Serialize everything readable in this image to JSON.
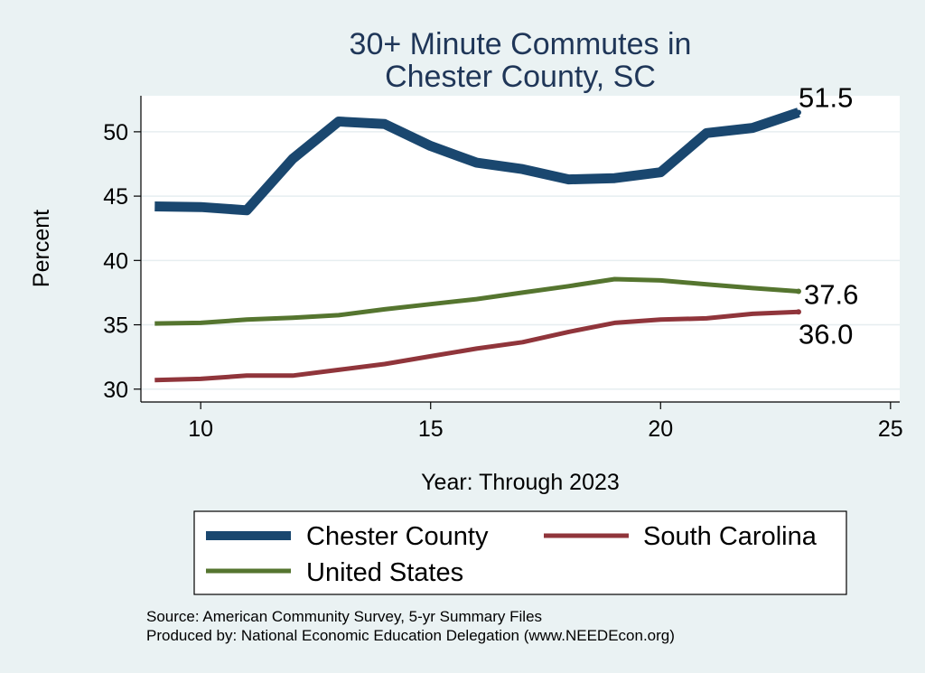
{
  "chart_data": {
    "type": "line",
    "title": [
      "30+ Minute Commutes in",
      "Chester County, SC"
    ],
    "xlabel": "Year: Through 2023",
    "ylabel": "Percent",
    "xlim": [
      8.7,
      25.2
    ],
    "ylim": [
      29.0,
      52.8
    ],
    "xticks": [
      10,
      15,
      20,
      25
    ],
    "yticks": [
      30,
      35,
      40,
      45,
      50
    ],
    "grid": true,
    "x": [
      9,
      10,
      11,
      12,
      13,
      14,
      15,
      16,
      17,
      18,
      19,
      20,
      21,
      22,
      23
    ],
    "series": [
      {
        "name": "Chester County",
        "color": "#1a476f",
        "values": [
          44.2,
          44.15,
          43.9,
          47.9,
          50.8,
          50.6,
          48.9,
          47.6,
          47.1,
          46.3,
          46.4,
          46.85,
          49.9,
          50.3,
          51.5
        ],
        "end_label": "51.5"
      },
      {
        "name": "South Carolina",
        "color": "#90353b",
        "values": [
          30.7,
          30.8,
          31.05,
          31.05,
          31.5,
          31.95,
          32.55,
          33.15,
          33.65,
          34.45,
          35.15,
          35.4,
          35.5,
          35.85,
          36.0
        ],
        "end_label": "36.0"
      },
      {
        "name": "United States",
        "color": "#55752f",
        "values": [
          35.1,
          35.15,
          35.4,
          35.55,
          35.75,
          36.2,
          36.6,
          37.0,
          37.5,
          38.0,
          38.55,
          38.45,
          38.15,
          37.85,
          37.6
        ],
        "end_label": "37.6"
      }
    ],
    "legend": {
      "placement": "bottom",
      "entries": [
        "Chester County",
        "South Carolina",
        "United States"
      ]
    }
  },
  "notes": {
    "source": "Source: American Community Survey, 5-yr Summary Files",
    "produced": "Produced by: National Economic Education Delegation (www.NEEDEcon.org)"
  }
}
